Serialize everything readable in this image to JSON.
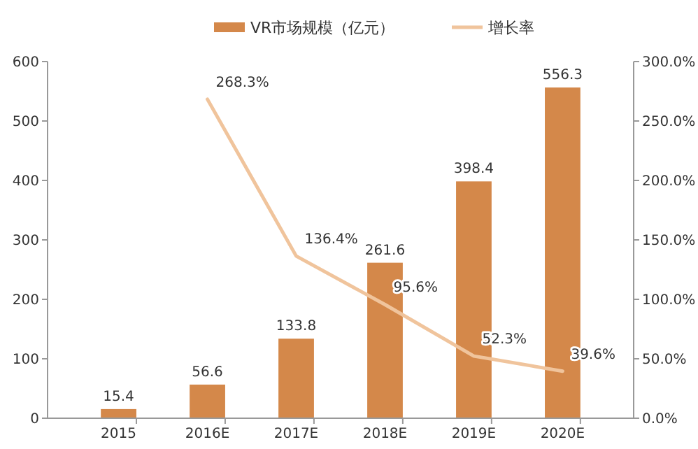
{
  "chart_data": {
    "type": "bar",
    "categories": [
      "2015",
      "2016E",
      "2017E",
      "2018E",
      "2019E",
      "2020E"
    ],
    "series": [
      {
        "name": "VR市场规模（亿元）",
        "color": "#d4884a",
        "values": [
          15.4,
          56.6,
          133.8,
          261.6,
          398.4,
          556.3
        ],
        "value_labels": [
          "15.4",
          "56.6",
          "133.8",
          "261.6",
          "398.4",
          "556.3"
        ]
      },
      {
        "name": "增长率",
        "type": "line",
        "axis": "y2",
        "color": "#f0c49c",
        "values": [
          null,
          268.3,
          136.4,
          95.6,
          52.3,
          39.6
        ],
        "value_labels": [
          null,
          "268.3%",
          "136.4%",
          "95.6%",
          "52.3%",
          "39.6%"
        ]
      }
    ],
    "ylim": [
      0,
      600
    ],
    "yticks": [
      0,
      100,
      200,
      300,
      400,
      500,
      600
    ],
    "y2lim": [
      0,
      300
    ],
    "y2ticks": [
      {
        "value": 0,
        "label": "0.0%"
      },
      {
        "value": 50,
        "label": "50.0%"
      },
      {
        "value": 100,
        "label": "100.0%"
      },
      {
        "value": 150,
        "label": "150.0%"
      },
      {
        "value": 200,
        "label": "200.0%"
      },
      {
        "value": 250,
        "label": "250.0%"
      },
      {
        "value": 300,
        "label": "300.0%"
      }
    ],
    "legend": "top",
    "grid": false
  }
}
